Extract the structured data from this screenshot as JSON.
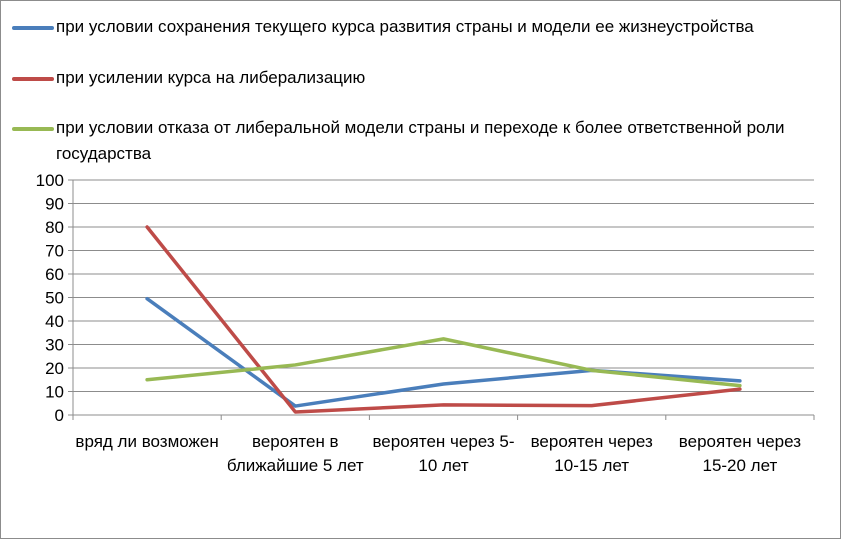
{
  "chart_data": {
    "type": "line",
    "title": "",
    "xlabel": "",
    "ylabel": "",
    "ylim": [
      0,
      100
    ],
    "yticks": [
      0,
      10,
      20,
      30,
      40,
      50,
      60,
      70,
      80,
      90,
      100
    ],
    "grid": true,
    "legend_position": "top",
    "categories": [
      "вряд ли возможен",
      "вероятен в ближайшие 5 лет",
      "вероятен через 5-10 лет",
      "вероятен через 10-15 лет",
      "вероятен через 15-20 лет"
    ],
    "series": [
      {
        "name": "при условии сохранения текущего курса развития страны и модели ее жизнеустройства",
        "color": "#4a7ebb",
        "values": [
          49.5,
          3.8,
          13.2,
          19.0,
          14.5
        ]
      },
      {
        "name": "при усилении курса на либерализацию",
        "color": "#be4b48",
        "values": [
          80,
          1.3,
          4.3,
          4.0,
          11.0
        ]
      },
      {
        "name": "при условии отказа от либеральной модели страны и переходе к более ответственной роли государства",
        "color": "#98b954",
        "values": [
          15,
          21.3,
          32.4,
          19.0,
          12.5
        ]
      }
    ]
  }
}
